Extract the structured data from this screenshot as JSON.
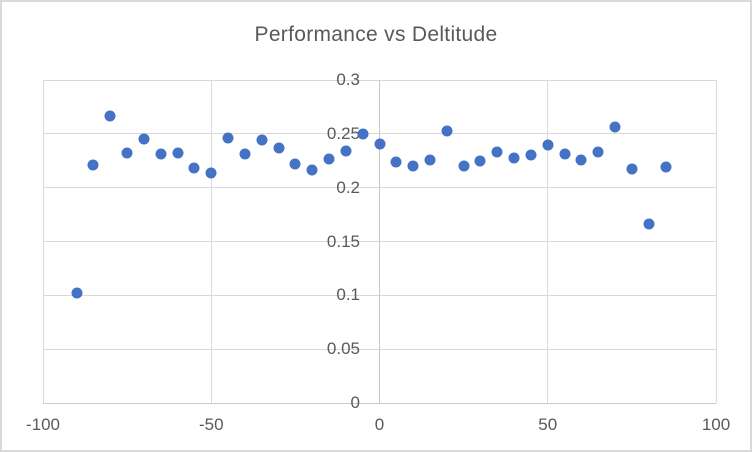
{
  "window": {
    "background_color": "#FFFFFF",
    "border_color": "#D9D9D9"
  },
  "chart_data": {
    "type": "scatter",
    "title": "Performance vs Deltitude",
    "xlabel": "",
    "ylabel": "",
    "xlim": [
      -100,
      100
    ],
    "ylim": [
      0,
      0.3
    ],
    "x_ticks": [
      -100,
      -50,
      0,
      50,
      100
    ],
    "x_tick_labels": [
      "-100",
      "-50",
      "0",
      "50",
      "100"
    ],
    "y_ticks": [
      0,
      0.05,
      0.1,
      0.15,
      0.2,
      0.25,
      0.3
    ],
    "y_tick_labels": [
      "0",
      "0.05",
      "0.1",
      "0.15",
      "0.2",
      "0.25",
      "0.3"
    ],
    "grid": true,
    "legend": "none",
    "marker_color": "#4472C4",
    "gridline_color": "#D9D9D9",
    "axis_line_color": "#C9C9C9",
    "text_color": "#595959",
    "series": [
      {
        "name": "Performance",
        "points": [
          [
            -90,
            0.102
          ],
          [
            -85,
            0.221
          ],
          [
            -80,
            0.267
          ],
          [
            -75,
            0.232
          ],
          [
            -70,
            0.245
          ],
          [
            -65,
            0.231
          ],
          [
            -60,
            0.232
          ],
          [
            -55,
            0.218
          ],
          [
            -50,
            0.214
          ],
          [
            -45,
            0.246
          ],
          [
            -40,
            0.231
          ],
          [
            -35,
            0.244
          ],
          [
            -30,
            0.237
          ],
          [
            -25,
            0.222
          ],
          [
            -20,
            0.216
          ],
          [
            -15,
            0.227
          ],
          [
            -10,
            0.234
          ],
          [
            -5,
            0.25
          ],
          [
            0,
            0.241
          ],
          [
            5,
            0.224
          ],
          [
            10,
            0.22
          ],
          [
            15,
            0.226
          ],
          [
            20,
            0.253
          ],
          [
            25,
            0.22
          ],
          [
            30,
            0.225
          ],
          [
            35,
            0.233
          ],
          [
            40,
            0.228
          ],
          [
            45,
            0.23
          ],
          [
            50,
            0.24
          ],
          [
            55,
            0.231
          ],
          [
            60,
            0.226
          ],
          [
            65,
            0.233
          ],
          [
            70,
            0.256
          ],
          [
            75,
            0.217
          ],
          [
            80,
            0.166
          ],
          [
            85,
            0.219
          ]
        ]
      }
    ]
  }
}
